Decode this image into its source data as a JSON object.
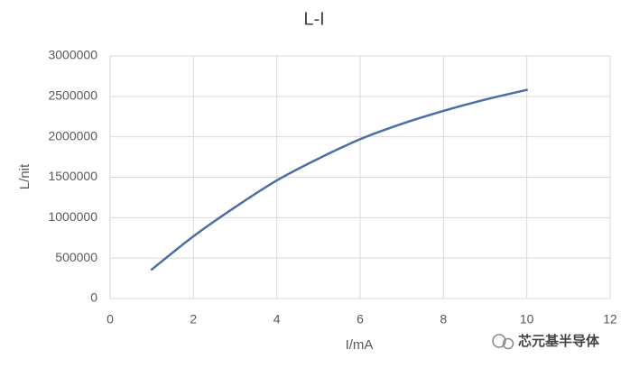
{
  "chart_data": {
    "type": "line",
    "title": "L-I",
    "x_label": "I/mA",
    "y_label": "L/nit",
    "x": [
      1,
      2,
      3,
      4,
      5,
      6,
      7,
      8,
      9,
      10
    ],
    "series": [
      {
        "name": "L",
        "color": "#4a6fa5",
        "values": [
          360000,
          770000,
          1130000,
          1460000,
          1730000,
          1970000,
          2160000,
          2320000,
          2460000,
          2580000
        ]
      }
    ],
    "xlim": [
      0,
      12
    ],
    "xticks": [
      0,
      2,
      4,
      6,
      8,
      10,
      12
    ],
    "ylim": [
      0,
      3000000
    ],
    "yticks": [
      0,
      500000,
      1000000,
      1500000,
      2000000,
      2500000,
      3000000
    ],
    "grid": true,
    "smooth": true,
    "watermark": "芯元基半导体"
  }
}
